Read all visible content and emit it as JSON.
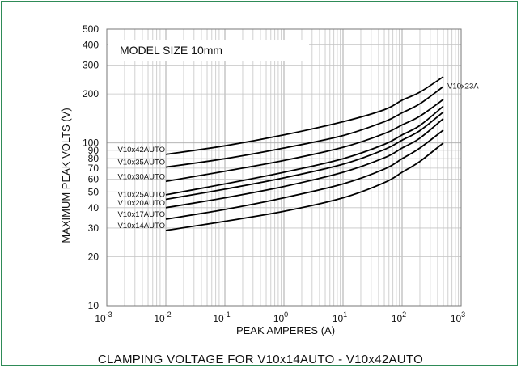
{
  "chart_data": {
    "type": "line",
    "xscale": "log",
    "yscale": "log",
    "xlim": [
      0.001,
      1000
    ],
    "ylim": [
      10,
      500
    ],
    "xlabel": "PEAK AMPERES (A)",
    "ylabel": "MAXIMUM PEAK VOLTS (V)",
    "x_ticks": [
      {
        "value": 0.001,
        "base": "10",
        "exp": "-3"
      },
      {
        "value": 0.01,
        "base": "10",
        "exp": "-2"
      },
      {
        "value": 0.1,
        "base": "10",
        "exp": "-1"
      },
      {
        "value": 1,
        "base": "10",
        "exp": "0"
      },
      {
        "value": 10,
        "base": "10",
        "exp": "1"
      },
      {
        "value": 100,
        "base": "10",
        "exp": "2"
      },
      {
        "value": 1000,
        "base": "10",
        "exp": "3"
      }
    ],
    "y_ticks": [
      {
        "value": 10,
        "label": "10"
      },
      {
        "value": 20,
        "label": "20"
      },
      {
        "value": 30,
        "label": "30"
      },
      {
        "value": 40,
        "label": "40"
      },
      {
        "value": 50,
        "label": "50"
      },
      {
        "value": 60,
        "label": "60"
      },
      {
        "value": 70,
        "label": "70"
      },
      {
        "value": 80,
        "label": "80"
      },
      {
        "value": 90,
        "label": "90"
      },
      {
        "value": 100,
        "label": "100"
      },
      {
        "value": 200,
        "label": "200"
      },
      {
        "value": 300,
        "label": "300"
      },
      {
        "value": 400,
        "label": "400"
      },
      {
        "value": 500,
        "label": "500"
      }
    ],
    "grid": true,
    "box_label": "MODEL SIZE 10mm",
    "series": [
      {
        "name": "V10x42AUTO",
        "label_side": "left",
        "x": [
          0.01,
          0.1,
          1,
          10,
          50,
          100,
          200,
          500
        ],
        "y": [
          85,
          96,
          112,
          135,
          160,
          183,
          205,
          255
        ]
      },
      {
        "name": "V10x35AUTO",
        "label_side": "left",
        "x": [
          0.01,
          0.1,
          1,
          10,
          50,
          100,
          200,
          500
        ],
        "y": [
          71,
          80,
          93,
          111,
          135,
          153,
          174,
          222
        ]
      },
      {
        "name": "V10x30AUTO",
        "label_side": "left",
        "x": [
          0.01,
          0.1,
          1,
          10,
          50,
          100,
          200,
          500
        ],
        "y": [
          58,
          67,
          78,
          94,
          114,
          129,
          146,
          185
        ]
      },
      {
        "name": "V10x23A",
        "label_side": "right",
        "x": [
          0.01,
          0.1,
          1,
          10,
          50,
          100,
          200,
          500
        ],
        "y": [
          48,
          56,
          66,
          80,
          98,
          112,
          128,
          168
        ]
      },
      {
        "name": "V10x25AUTO",
        "label_side": "left",
        "x": [
          0.01,
          0.1,
          1,
          10,
          50,
          100,
          200,
          500
        ],
        "y": [
          45,
          52,
          61,
          74,
          91,
          104,
          119,
          155
        ]
      },
      {
        "name": "V10x20AUTO",
        "label_side": "left",
        "x": [
          0.01,
          0.1,
          1,
          10,
          50,
          100,
          200,
          500
        ],
        "y": [
          40,
          46,
          54,
          66,
          81,
          93,
          107,
          141
        ]
      },
      {
        "name": "V10x17AUTO",
        "label_side": "left",
        "x": [
          0.01,
          0.1,
          1,
          10,
          50,
          100,
          200,
          500
        ],
        "y": [
          34,
          39,
          46,
          56,
          69,
          80,
          93,
          120
        ]
      },
      {
        "name": "V10x14AUTO",
        "label_side": "left",
        "x": [
          0.01,
          0.1,
          1,
          10,
          50,
          100,
          200,
          500
        ],
        "y": [
          29,
          33,
          38,
          46,
          57,
          66,
          77,
          100
        ]
      }
    ],
    "caption": "CLAMPING VOLTAGE FOR V10x14AUTO - V10x42AUTO"
  },
  "colors": {
    "border": "#2e8b57",
    "grid": "#c4c4c4",
    "line": "#000000"
  }
}
